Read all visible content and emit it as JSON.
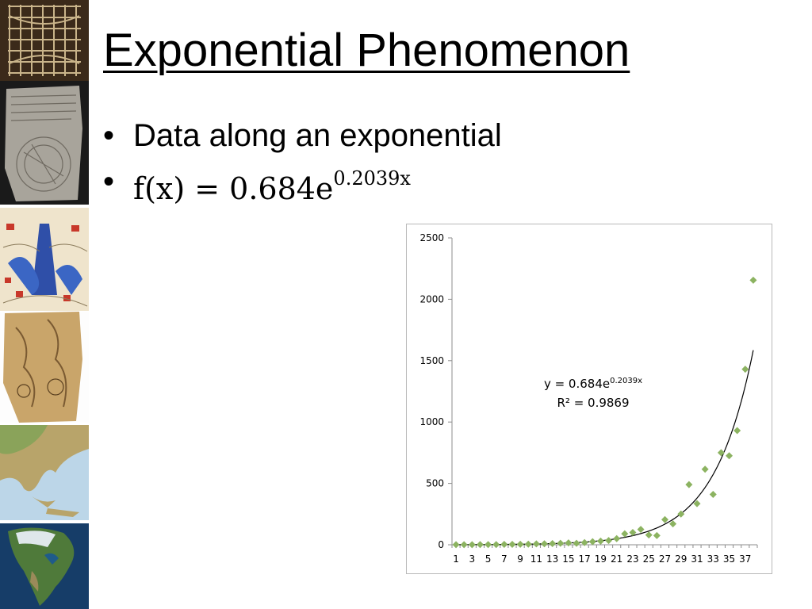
{
  "slide": {
    "title": "Exponential Phenomenon",
    "bullets": [
      {
        "text": "Data along an exponential"
      },
      {
        "formula_prefix": "f(x) = 0.684e",
        "formula_exp": "0.2039x"
      }
    ]
  },
  "thumbnails": [
    {
      "name": "wood-grid-map-thumbnail"
    },
    {
      "name": "clay-tablet-map-thumbnail"
    },
    {
      "name": "illustrated-mountain-map-thumbnail"
    },
    {
      "name": "parchment-map-thumbnail"
    },
    {
      "name": "greece-relief-map-thumbnail"
    },
    {
      "name": "north-america-satellite-thumbnail"
    }
  ],
  "colors": {
    "marker": "#8cb361",
    "trendline": "#000000",
    "axis": "#8c8c8c",
    "border": "#b9b9b9"
  },
  "chart_data": {
    "type": "scatter",
    "title": "",
    "xlabel": "",
    "ylabel": "",
    "xlim": [
      1,
      38
    ],
    "ylim": [
      0,
      2500
    ],
    "yticks": [
      0,
      500,
      1000,
      1500,
      2000,
      2500
    ],
    "xtick_labels": [
      "1",
      "3",
      "5",
      "7",
      "9",
      "11",
      "13",
      "15",
      "17",
      "19",
      "21",
      "23",
      "25",
      "27",
      "29",
      "31",
      "33",
      "35",
      "37"
    ],
    "marker": "diamond",
    "grid": false,
    "legend": "none",
    "series": [
      {
        "x": [
          1,
          2,
          3,
          4,
          5,
          6,
          7,
          8,
          9,
          10,
          11,
          12,
          13,
          14,
          15,
          16,
          17,
          18,
          19,
          20,
          21,
          22,
          23,
          24,
          25,
          26,
          27,
          28,
          29,
          30,
          31,
          32,
          33,
          34,
          35,
          36,
          37,
          38
        ],
        "values": [
          1,
          1,
          1,
          2,
          2,
          2,
          3,
          3,
          4,
          5,
          7,
          8,
          10,
          12,
          15,
          12,
          18,
          25,
          30,
          35,
          50,
          90,
          100,
          125,
          80,
          75,
          205,
          170,
          250,
          490,
          335,
          615,
          410,
          750,
          725,
          930,
          1430,
          2155
        ]
      }
    ],
    "trendline": {
      "type": "exponential",
      "a": 0.684,
      "b": 0.2039,
      "equation_text": "y = 0.684e",
      "equation_exp": "0.2039x",
      "r2_text": "R² = 0.9869"
    }
  }
}
